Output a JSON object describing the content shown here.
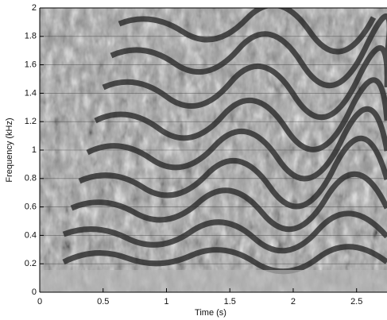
{
  "chart_data": {
    "type": "spectrogram",
    "xlabel": "Time (s)",
    "ylabel": "Frequency (kHz)",
    "xlim": [
      0,
      2.74
    ],
    "ylim": [
      0,
      2
    ],
    "xticks": [
      0,
      0.5,
      1,
      1.5,
      2,
      2.5
    ],
    "yticks": [
      0,
      0.2,
      0.4,
      0.6,
      0.8,
      1,
      1.2,
      1.4,
      1.6,
      1.8,
      2
    ],
    "grid": true
  }
}
